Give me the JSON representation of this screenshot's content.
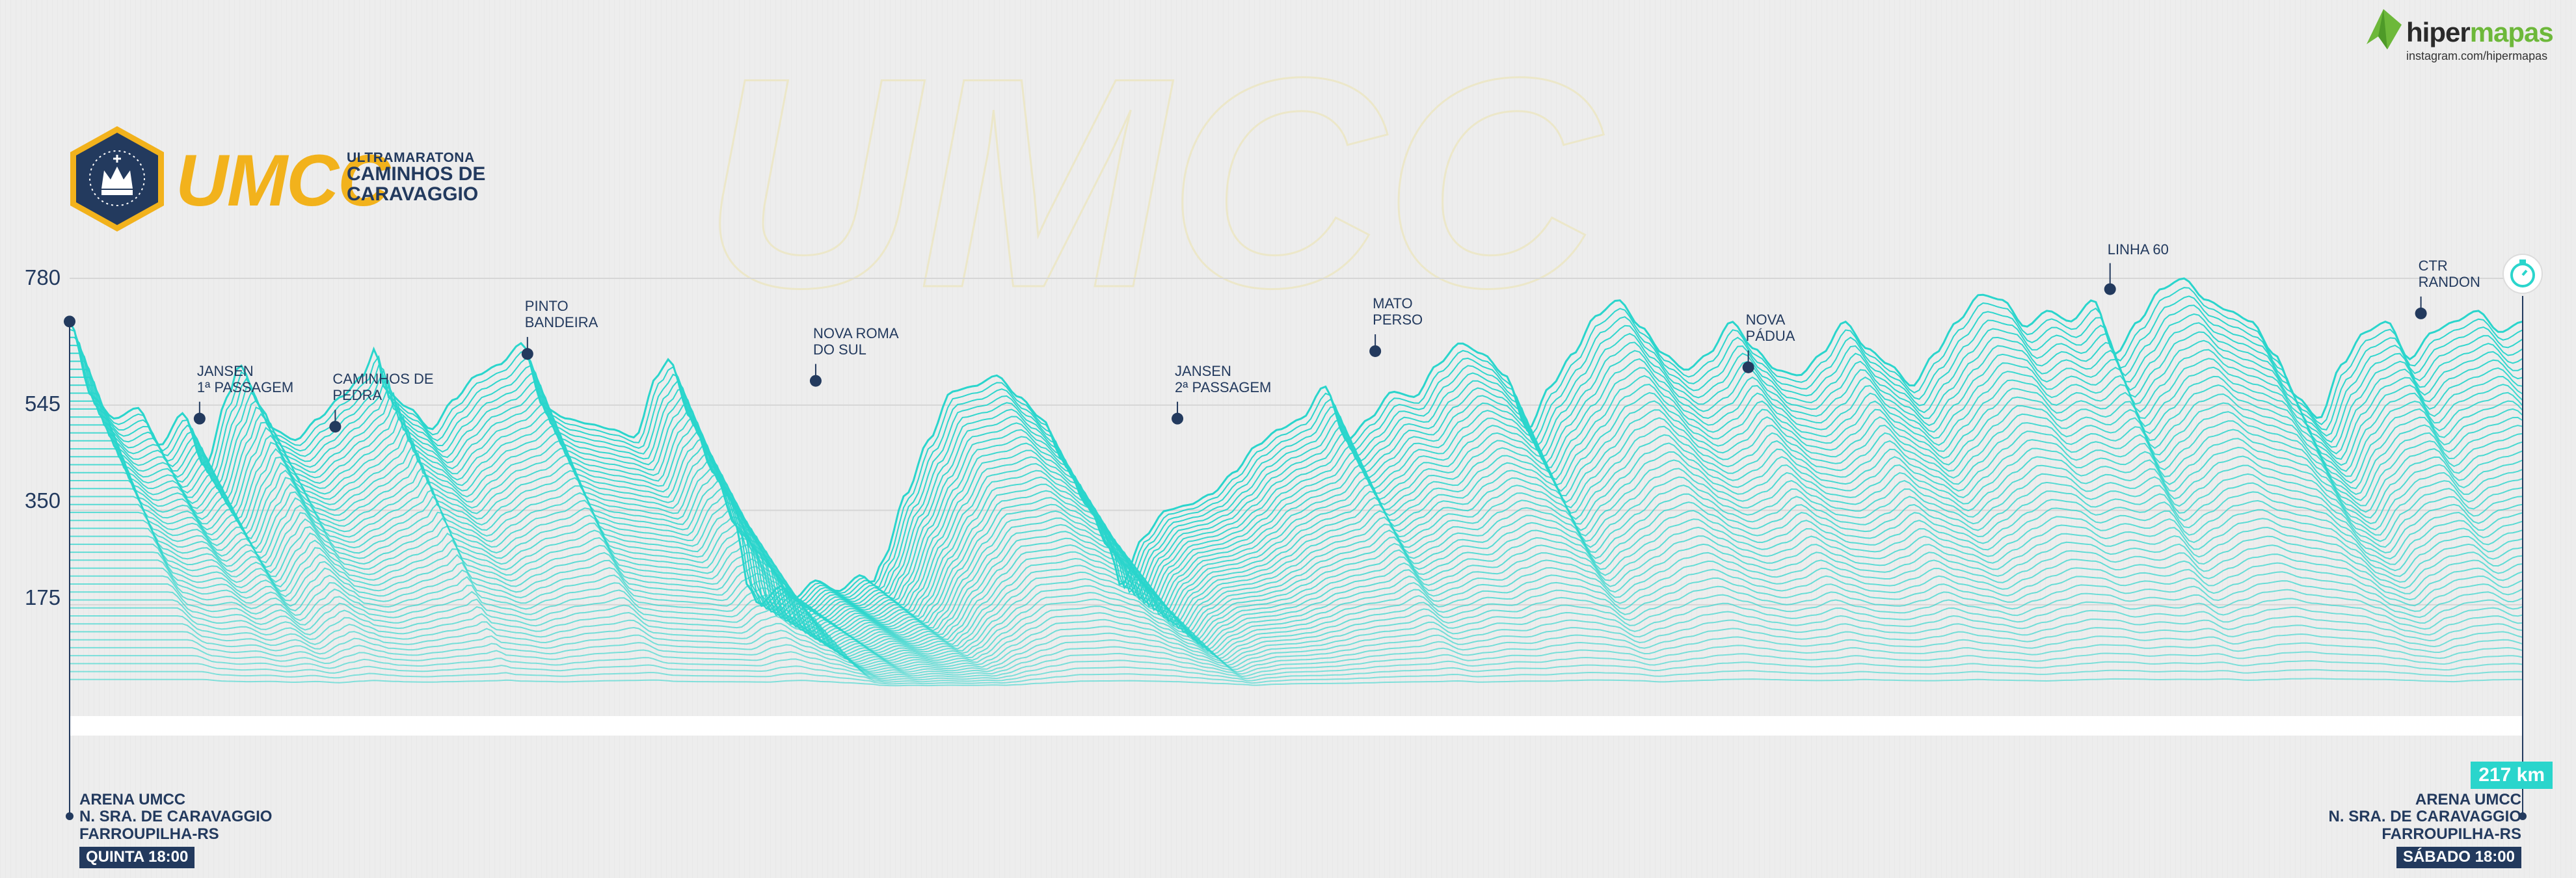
{
  "brand": {
    "logo_mark": "UMCC",
    "logo_line1": "ULTRAMARATONA",
    "logo_line2": "CAMINHOS DE",
    "logo_line3": "CARAVAGGIO",
    "watermark": "UMCC",
    "hipermapas_a": "hiper",
    "hipermapas_b": "mapas",
    "instagram": "instagram.com/hipermapas"
  },
  "colors": {
    "background": "#ededed",
    "line": "#2ad5cc",
    "navy": "#233a5e",
    "gold": "#f2b21c",
    "green": "#6db83a"
  },
  "start": {
    "line1": "ARENA UMCC",
    "line2": "N. SRA. DE CARAVAGGIO",
    "line3": "FARROUPILHA-RS",
    "time": "QUINTA 18:00"
  },
  "finish": {
    "line1": "ARENA UMCC",
    "line2": "N. SRA. DE CARAVAGGIO",
    "line3": "FARROUPILHA-RS",
    "time": "SÁBADO 18:00",
    "distance": "217 km"
  },
  "chart_data": {
    "type": "area",
    "title": "",
    "xlabel": "",
    "ylabel": "",
    "y_ticks": [
      780,
      545,
      350,
      175
    ],
    "x_range_km": [
      0,
      217
    ],
    "grid": true,
    "profile": [
      [
        0,
        700
      ],
      [
        2,
        560
      ],
      [
        4,
        520
      ],
      [
        6,
        540
      ],
      [
        8,
        470
      ],
      [
        10,
        530
      ],
      [
        12,
        430
      ],
      [
        14,
        560
      ],
      [
        15,
        620
      ],
      [
        17,
        540
      ],
      [
        18,
        500
      ],
      [
        20,
        480
      ],
      [
        22,
        520
      ],
      [
        24,
        560
      ],
      [
        26,
        600
      ],
      [
        27,
        650
      ],
      [
        28,
        570
      ],
      [
        30,
        540
      ],
      [
        32,
        500
      ],
      [
        34,
        555
      ],
      [
        36,
        600
      ],
      [
        38,
        620
      ],
      [
        40,
        660
      ],
      [
        42,
        540
      ],
      [
        44,
        520
      ],
      [
        46,
        510
      ],
      [
        48,
        500
      ],
      [
        50,
        485
      ],
      [
        52,
        600
      ],
      [
        53,
        630
      ],
      [
        55,
        520
      ],
      [
        57,
        420
      ],
      [
        59,
        320
      ],
      [
        60,
        210
      ],
      [
        61,
        175
      ],
      [
        63,
        210
      ],
      [
        64,
        185
      ],
      [
        66,
        220
      ],
      [
        68,
        200
      ],
      [
        70,
        230
      ],
      [
        71,
        215
      ],
      [
        72,
        260
      ],
      [
        74,
        380
      ],
      [
        76,
        480
      ],
      [
        78,
        570
      ],
      [
        80,
        580
      ],
      [
        82,
        600
      ],
      [
        84,
        560
      ],
      [
        86,
        520
      ],
      [
        88,
        440
      ],
      [
        90,
        360
      ],
      [
        92,
        280
      ],
      [
        93,
        210
      ],
      [
        95,
        300
      ],
      [
        97,
        350
      ],
      [
        99,
        360
      ],
      [
        101,
        380
      ],
      [
        103,
        420
      ],
      [
        105,
        470
      ],
      [
        107,
        500
      ],
      [
        109,
        520
      ],
      [
        111,
        580
      ],
      [
        113,
        480
      ],
      [
        115,
        520
      ],
      [
        117,
        570
      ],
      [
        119,
        560
      ],
      [
        121,
        620
      ],
      [
        123,
        660
      ],
      [
        125,
        640
      ],
      [
        127,
        600
      ],
      [
        129,
        500
      ],
      [
        131,
        580
      ],
      [
        133,
        640
      ],
      [
        135,
        710
      ],
      [
        137,
        740
      ],
      [
        139,
        690
      ],
      [
        141,
        640
      ],
      [
        143,
        610
      ],
      [
        145,
        640
      ],
      [
        147,
        700
      ],
      [
        149,
        650
      ],
      [
        151,
        610
      ],
      [
        153,
        600
      ],
      [
        155,
        640
      ],
      [
        157,
        700
      ],
      [
        159,
        650
      ],
      [
        161,
        620
      ],
      [
        163,
        580
      ],
      [
        165,
        640
      ],
      [
        167,
        700
      ],
      [
        169,
        750
      ],
      [
        171,
        740
      ],
      [
        173,
        690
      ],
      [
        175,
        720
      ],
      [
        177,
        700
      ],
      [
        179,
        740
      ],
      [
        181,
        640
      ],
      [
        183,
        700
      ],
      [
        185,
        760
      ],
      [
        187,
        780
      ],
      [
        189,
        740
      ],
      [
        191,
        720
      ],
      [
        193,
        700
      ],
      [
        195,
        640
      ],
      [
        197,
        560
      ],
      [
        199,
        520
      ],
      [
        201,
        620
      ],
      [
        203,
        680
      ],
      [
        205,
        700
      ],
      [
        207,
        630
      ],
      [
        209,
        680
      ],
      [
        211,
        700
      ],
      [
        213,
        720
      ],
      [
        215,
        680
      ],
      [
        217,
        700
      ]
    ],
    "points": [
      {
        "name": "JANSEN\n1ª PASSAGEM",
        "km": 11.5,
        "elev": 520
      },
      {
        "name": "CAMINHOS DE\nPEDRA",
        "km": 23.5,
        "elev": 505
      },
      {
        "name": "PINTO\nBANDEIRA",
        "km": 40.5,
        "elev": 640
      },
      {
        "name": "NOVA ROMA\nDO SUL",
        "km": 66,
        "elev": 590
      },
      {
        "name": "JANSEN\n2ª PASSAGEM",
        "km": 98,
        "elev": 520
      },
      {
        "name": "MATO\nPERSO",
        "km": 115.5,
        "elev": 645
      },
      {
        "name": "NOVA\nPÁDUA",
        "km": 148.5,
        "elev": 615
      },
      {
        "name": "LINHA 60",
        "km": 180.5,
        "elev": 760
      },
      {
        "name": "CTR\nRANDON",
        "km": 208,
        "elev": 715
      }
    ]
  }
}
